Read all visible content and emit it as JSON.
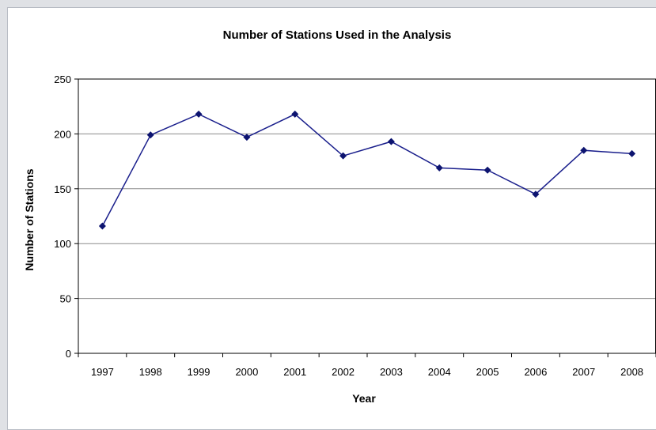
{
  "chart_data": {
    "type": "line",
    "title": "Number of Stations Used in the Analysis",
    "xlabel": "Year",
    "ylabel": "Number of Stations",
    "categories": [
      "1997",
      "1998",
      "1999",
      "2000",
      "2001",
      "2002",
      "2003",
      "2004",
      "2005",
      "2006",
      "2007",
      "2008"
    ],
    "series": [
      {
        "values": [
          116,
          199,
          218,
          197,
          218,
          180,
          193,
          169,
          167,
          145,
          185,
          182
        ]
      }
    ],
    "ylim": [
      0,
      250
    ],
    "yticks": [
      "0",
      "50",
      "100",
      "150",
      "200",
      "250"
    ],
    "grid": true,
    "legend": "none",
    "colors": {
      "line": "#1a1f8c",
      "marker": "#0d1470",
      "grid": "#8c8c8c",
      "frame_bg": "#ffffff",
      "page_bg": "#dfe1e5"
    }
  }
}
